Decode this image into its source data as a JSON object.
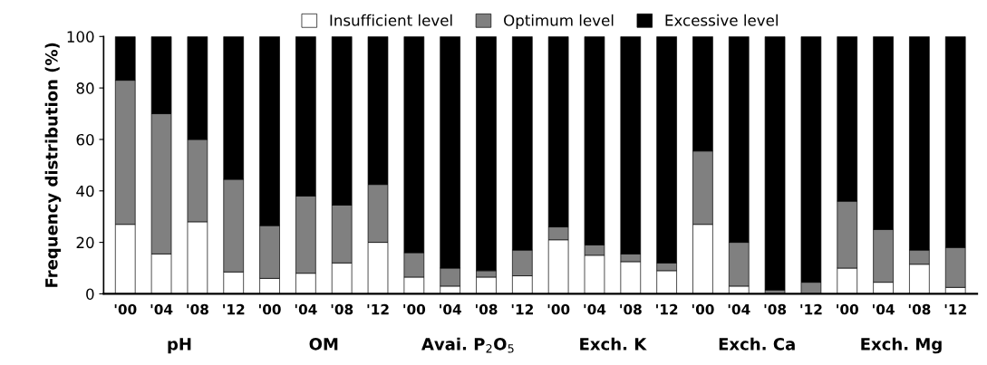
{
  "chart_data": {
    "type": "bar",
    "stacked": true,
    "ylabel": "Frequency distribution (%)",
    "categories": [
      "'00",
      "'04",
      "'08",
      "'12",
      "'00",
      "'04",
      "'08",
      "'12",
      "'00",
      "'04",
      "'08",
      "'12",
      "'00",
      "'04",
      "'08",
      "'12",
      "'00",
      "'04",
      "'08",
      "'12",
      "'00",
      "'04",
      "'08",
      "'12"
    ],
    "series": [
      {
        "name": "Insufficient level",
        "color": "#ffffff",
        "values": [
          27,
          15.5,
          28,
          8.5,
          6,
          8,
          12,
          20,
          6.5,
          3,
          6.5,
          7,
          21,
          15,
          12.5,
          9,
          27,
          3,
          null,
          null,
          10,
          4.5,
          11.5,
          2.5
        ]
      },
      {
        "name": "Optimum level",
        "color": "#808080",
        "values": [
          56,
          54.5,
          32,
          36,
          20.5,
          30,
          22.5,
          22.5,
          9.5,
          7,
          2.5,
          10,
          5,
          4,
          3,
          3,
          28.5,
          17,
          1.5,
          4.5,
          26,
          20.5,
          5.5,
          15.5
        ]
      },
      {
        "name": "Excessive level",
        "color": "#000000",
        "values": [
          17,
          30,
          40,
          55.5,
          73.5,
          62,
          65.5,
          57.5,
          84,
          90,
          91,
          83,
          74,
          81,
          84.5,
          88,
          44.5,
          80,
          98.5,
          95.5,
          64,
          75,
          83,
          82
        ]
      }
    ],
    "annotations": [
      "pH",
      "OM",
      "Avai. P$_{2}$O$_{5}$",
      "Exch. K",
      "Exch. Ca",
      "Exch. Mg"
    ],
    "ylim": [
      0,
      100
    ],
    "yticks": [
      0,
      20,
      40,
      60,
      80,
      100
    ],
    "grid": false,
    "legend": "top"
  }
}
